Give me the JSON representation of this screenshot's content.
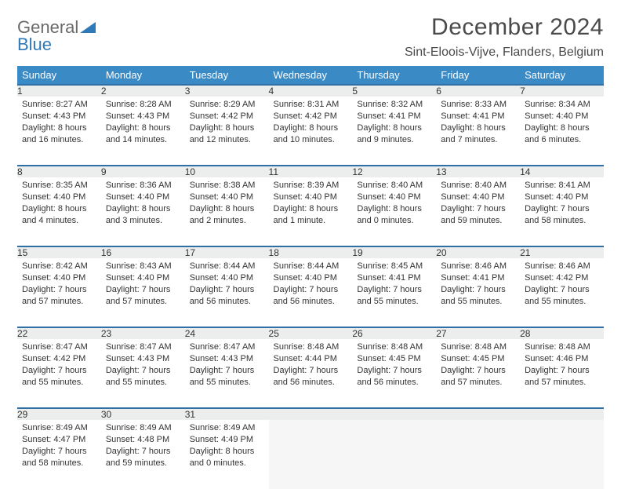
{
  "logo": {
    "general": "General",
    "blue": "Blue"
  },
  "title": "December 2024",
  "location": "Sint-Eloois-Vijve, Flanders, Belgium",
  "colors": {
    "header_bg": "#3a8ac6",
    "header_text": "#ffffff",
    "daynum_bg": "#eceded",
    "daynum_border": "#2f6fa3",
    "body_text": "#333333",
    "logo_gray": "#6a6a6a",
    "logo_blue": "#2f79b9",
    "empty_bg": "#f6f6f6"
  },
  "weekdays": [
    "Sunday",
    "Monday",
    "Tuesday",
    "Wednesday",
    "Thursday",
    "Friday",
    "Saturday"
  ],
  "weeks": [
    [
      {
        "n": "1",
        "sunrise": "8:27 AM",
        "sunset": "4:43 PM",
        "daylight": "8 hours and 16 minutes."
      },
      {
        "n": "2",
        "sunrise": "8:28 AM",
        "sunset": "4:43 PM",
        "daylight": "8 hours and 14 minutes."
      },
      {
        "n": "3",
        "sunrise": "8:29 AM",
        "sunset": "4:42 PM",
        "daylight": "8 hours and 12 minutes."
      },
      {
        "n": "4",
        "sunrise": "8:31 AM",
        "sunset": "4:42 PM",
        "daylight": "8 hours and 10 minutes."
      },
      {
        "n": "5",
        "sunrise": "8:32 AM",
        "sunset": "4:41 PM",
        "daylight": "8 hours and 9 minutes."
      },
      {
        "n": "6",
        "sunrise": "8:33 AM",
        "sunset": "4:41 PM",
        "daylight": "8 hours and 7 minutes."
      },
      {
        "n": "7",
        "sunrise": "8:34 AM",
        "sunset": "4:40 PM",
        "daylight": "8 hours and 6 minutes."
      }
    ],
    [
      {
        "n": "8",
        "sunrise": "8:35 AM",
        "sunset": "4:40 PM",
        "daylight": "8 hours and 4 minutes."
      },
      {
        "n": "9",
        "sunrise": "8:36 AM",
        "sunset": "4:40 PM",
        "daylight": "8 hours and 3 minutes."
      },
      {
        "n": "10",
        "sunrise": "8:38 AM",
        "sunset": "4:40 PM",
        "daylight": "8 hours and 2 minutes."
      },
      {
        "n": "11",
        "sunrise": "8:39 AM",
        "sunset": "4:40 PM",
        "daylight": "8 hours and 1 minute."
      },
      {
        "n": "12",
        "sunrise": "8:40 AM",
        "sunset": "4:40 PM",
        "daylight": "8 hours and 0 minutes."
      },
      {
        "n": "13",
        "sunrise": "8:40 AM",
        "sunset": "4:40 PM",
        "daylight": "7 hours and 59 minutes."
      },
      {
        "n": "14",
        "sunrise": "8:41 AM",
        "sunset": "4:40 PM",
        "daylight": "7 hours and 58 minutes."
      }
    ],
    [
      {
        "n": "15",
        "sunrise": "8:42 AM",
        "sunset": "4:40 PM",
        "daylight": "7 hours and 57 minutes."
      },
      {
        "n": "16",
        "sunrise": "8:43 AM",
        "sunset": "4:40 PM",
        "daylight": "7 hours and 57 minutes."
      },
      {
        "n": "17",
        "sunrise": "8:44 AM",
        "sunset": "4:40 PM",
        "daylight": "7 hours and 56 minutes."
      },
      {
        "n": "18",
        "sunrise": "8:44 AM",
        "sunset": "4:40 PM",
        "daylight": "7 hours and 56 minutes."
      },
      {
        "n": "19",
        "sunrise": "8:45 AM",
        "sunset": "4:41 PM",
        "daylight": "7 hours and 55 minutes."
      },
      {
        "n": "20",
        "sunrise": "8:46 AM",
        "sunset": "4:41 PM",
        "daylight": "7 hours and 55 minutes."
      },
      {
        "n": "21",
        "sunrise": "8:46 AM",
        "sunset": "4:42 PM",
        "daylight": "7 hours and 55 minutes."
      }
    ],
    [
      {
        "n": "22",
        "sunrise": "8:47 AM",
        "sunset": "4:42 PM",
        "daylight": "7 hours and 55 minutes."
      },
      {
        "n": "23",
        "sunrise": "8:47 AM",
        "sunset": "4:43 PM",
        "daylight": "7 hours and 55 minutes."
      },
      {
        "n": "24",
        "sunrise": "8:47 AM",
        "sunset": "4:43 PM",
        "daylight": "7 hours and 55 minutes."
      },
      {
        "n": "25",
        "sunrise": "8:48 AM",
        "sunset": "4:44 PM",
        "daylight": "7 hours and 56 minutes."
      },
      {
        "n": "26",
        "sunrise": "8:48 AM",
        "sunset": "4:45 PM",
        "daylight": "7 hours and 56 minutes."
      },
      {
        "n": "27",
        "sunrise": "8:48 AM",
        "sunset": "4:45 PM",
        "daylight": "7 hours and 57 minutes."
      },
      {
        "n": "28",
        "sunrise": "8:48 AM",
        "sunset": "4:46 PM",
        "daylight": "7 hours and 57 minutes."
      }
    ],
    [
      {
        "n": "29",
        "sunrise": "8:49 AM",
        "sunset": "4:47 PM",
        "daylight": "7 hours and 58 minutes."
      },
      {
        "n": "30",
        "sunrise": "8:49 AM",
        "sunset": "4:48 PM",
        "daylight": "7 hours and 59 minutes."
      },
      {
        "n": "31",
        "sunrise": "8:49 AM",
        "sunset": "4:49 PM",
        "daylight": "8 hours and 0 minutes."
      },
      null,
      null,
      null,
      null
    ]
  ]
}
